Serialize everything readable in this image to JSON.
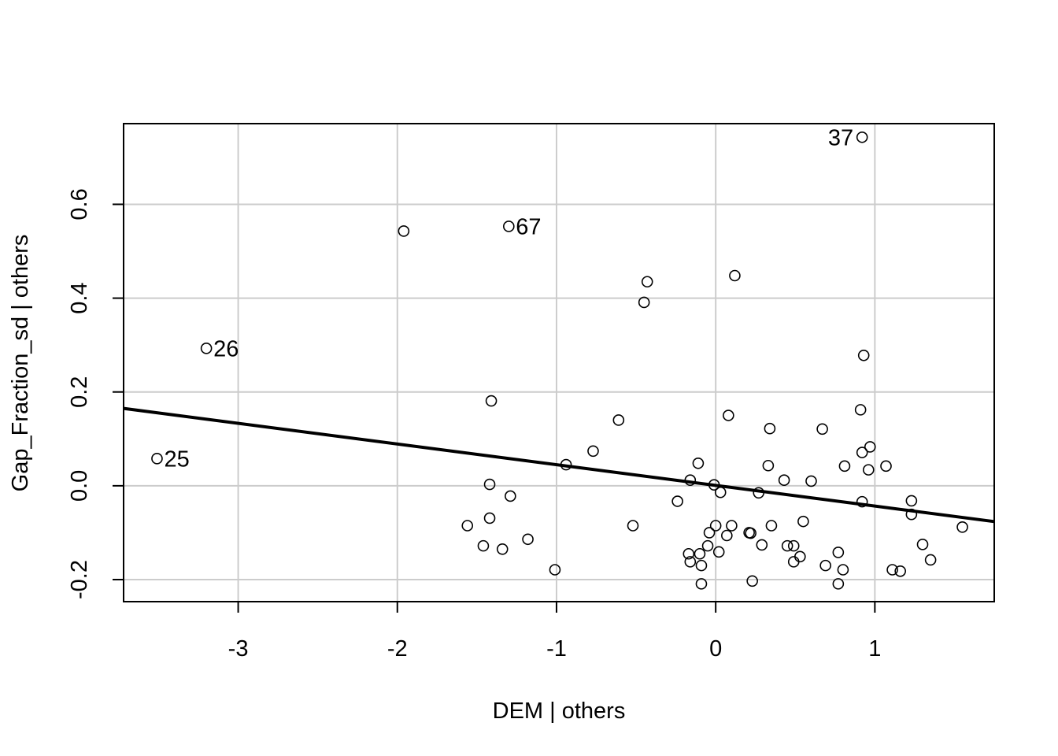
{
  "chart_data": {
    "type": "scatter",
    "title": "",
    "xlabel": "DEM | others",
    "ylabel": "Gap_Fraction_sd  | others",
    "xlim": [
      -3.72,
      1.75
    ],
    "ylim": [
      -0.247,
      0.772
    ],
    "x_ticks": [
      -3,
      -2,
      -1,
      0,
      1
    ],
    "y_ticks": [
      -0.2,
      0.0,
      0.2,
      0.4,
      0.6
    ],
    "x_tick_labels": [
      "-3",
      "-2",
      "-1",
      "0",
      "1"
    ],
    "y_tick_labels": [
      "-0.2",
      "0.0",
      "0.2",
      "0.4",
      "0.6"
    ],
    "grid": true,
    "legend": "none",
    "fit_line": {
      "slope": -0.0441,
      "intercept": 0.0009
    },
    "points": [
      {
        "x": 0.92,
        "y": 0.743
      },
      {
        "x": -1.3,
        "y": 0.553
      },
      {
        "x": -1.96,
        "y": 0.543
      },
      {
        "x": -0.43,
        "y": 0.435
      },
      {
        "x": 0.12,
        "y": 0.448
      },
      {
        "x": -0.45,
        "y": 0.391
      },
      {
        "x": -3.2,
        "y": 0.293
      },
      {
        "x": 0.93,
        "y": 0.278
      },
      {
        "x": -1.41,
        "y": 0.181
      },
      {
        "x": 0.91,
        "y": 0.162
      },
      {
        "x": 0.08,
        "y": 0.15
      },
      {
        "x": -0.61,
        "y": 0.14
      },
      {
        "x": 0.34,
        "y": 0.122
      },
      {
        "x": 0.67,
        "y": 0.121
      },
      {
        "x": -0.77,
        "y": 0.074
      },
      {
        "x": 0.97,
        "y": 0.083
      },
      {
        "x": 0.92,
        "y": 0.071
      },
      {
        "x": -3.51,
        "y": 0.058
      },
      {
        "x": -0.94,
        "y": 0.045
      },
      {
        "x": -0.11,
        "y": 0.048
      },
      {
        "x": 0.33,
        "y": 0.043
      },
      {
        "x": 0.81,
        "y": 0.042
      },
      {
        "x": 1.07,
        "y": 0.042
      },
      {
        "x": 0.96,
        "y": 0.034
      },
      {
        "x": -0.16,
        "y": 0.012
      },
      {
        "x": 0.43,
        "y": 0.012
      },
      {
        "x": 0.6,
        "y": 0.01
      },
      {
        "x": -1.42,
        "y": 0.003
      },
      {
        "x": -0.01,
        "y": 0.002
      },
      {
        "x": 0.03,
        "y": -0.014
      },
      {
        "x": 0.27,
        "y": -0.015
      },
      {
        "x": -1.29,
        "y": -0.022
      },
      {
        "x": -0.24,
        "y": -0.033
      },
      {
        "x": 0.92,
        "y": -0.034
      },
      {
        "x": 1.23,
        "y": -0.032
      },
      {
        "x": 1.23,
        "y": -0.061
      },
      {
        "x": -1.42,
        "y": -0.069
      },
      {
        "x": 0.55,
        "y": -0.076
      },
      {
        "x": -1.56,
        "y": -0.085
      },
      {
        "x": -0.52,
        "y": -0.085
      },
      {
        "x": 0.0,
        "y": -0.085
      },
      {
        "x": 0.1,
        "y": -0.085
      },
      {
        "x": 0.35,
        "y": -0.085
      },
      {
        "x": 1.55,
        "y": -0.088
      },
      {
        "x": -0.04,
        "y": -0.1
      },
      {
        "x": 0.21,
        "y": -0.1
      },
      {
        "x": 0.22,
        "y": -0.101
      },
      {
        "x": 0.07,
        "y": -0.106
      },
      {
        "x": -1.18,
        "y": -0.114
      },
      {
        "x": -1.46,
        "y": -0.128
      },
      {
        "x": -0.05,
        "y": -0.128
      },
      {
        "x": 0.29,
        "y": -0.126
      },
      {
        "x": 0.45,
        "y": -0.128
      },
      {
        "x": 0.49,
        "y": -0.128
      },
      {
        "x": 1.3,
        "y": -0.125
      },
      {
        "x": -1.34,
        "y": -0.135
      },
      {
        "x": 0.02,
        "y": -0.141
      },
      {
        "x": -0.17,
        "y": -0.145
      },
      {
        "x": -0.1,
        "y": -0.145
      },
      {
        "x": 0.77,
        "y": -0.142
      },
      {
        "x": 0.53,
        "y": -0.151
      },
      {
        "x": -0.16,
        "y": -0.162
      },
      {
        "x": 0.49,
        "y": -0.162
      },
      {
        "x": 1.35,
        "y": -0.158
      },
      {
        "x": -0.09,
        "y": -0.17
      },
      {
        "x": 0.69,
        "y": -0.17
      },
      {
        "x": -1.01,
        "y": -0.179
      },
      {
        "x": 0.8,
        "y": -0.179
      },
      {
        "x": 1.11,
        "y": -0.179
      },
      {
        "x": 1.16,
        "y": -0.182
      },
      {
        "x": 0.23,
        "y": -0.203
      },
      {
        "x": -0.09,
        "y": -0.209
      },
      {
        "x": 0.77,
        "y": -0.209
      }
    ],
    "annotations": [
      {
        "text": "37",
        "x": 0.92,
        "y": 0.743,
        "side": "left"
      },
      {
        "text": "67",
        "x": -1.3,
        "y": 0.553,
        "side": "right"
      },
      {
        "text": "26",
        "x": -3.2,
        "y": 0.293,
        "side": "right"
      },
      {
        "text": "25",
        "x": -3.51,
        "y": 0.058,
        "side": "right"
      }
    ]
  }
}
